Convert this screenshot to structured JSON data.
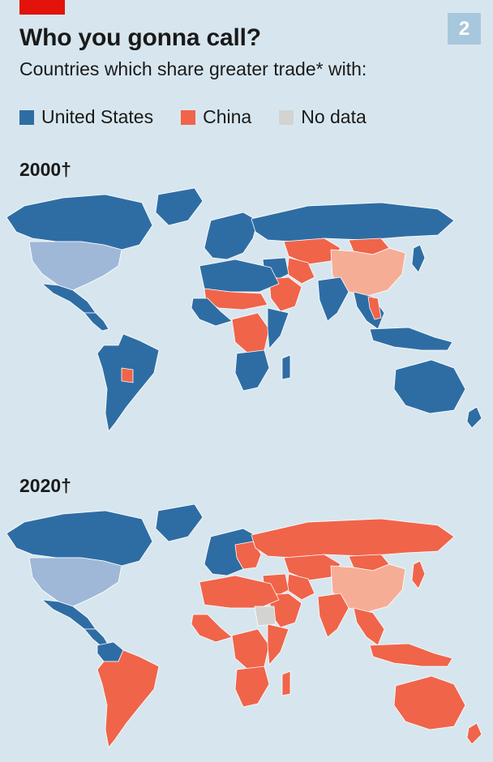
{
  "header": {
    "title": "Who you gonna call?",
    "subtitle": "Countries which share greater trade* with:",
    "badge": "2"
  },
  "legend": [
    {
      "label": "United States",
      "color": "#2e6da4"
    },
    {
      "label": "China",
      "color": "#f0644a"
    },
    {
      "label": "No data",
      "color": "#d3d3d1"
    }
  ],
  "colors": {
    "background": "#d7e6ee",
    "united_states": "#2e6da4",
    "china": "#f0644a",
    "no_data": "#d3d3d1",
    "usa_self": "#9fb8d8",
    "china_self": "#f6ad96",
    "border": "#ffffff",
    "accent_red": "#e3120b"
  },
  "maps": [
    {
      "year_label": "2000†",
      "regions": {
        "north_america": "united_states",
        "usa": "usa_self",
        "mexico": "united_states",
        "central_america": "united_states",
        "south_america": "united_states",
        "paraguay": "china",
        "greenland": "united_states",
        "europe": "united_states",
        "russia": "united_states",
        "central_asia": "china",
        "iran": "china",
        "middle_east": "united_states",
        "arabia": "china",
        "china": "china_self",
        "mongolia": "china",
        "india": "united_states",
        "southeast_asia": "united_states",
        "vietnam": "china",
        "japan": "united_states",
        "north_africa": "united_states",
        "sahel": "china",
        "west_africa": "united_states",
        "central_africa": "china",
        "east_africa": "united_states",
        "southern_africa": "united_states",
        "madagascar": "united_states",
        "indonesia": "united_states",
        "australia": "united_states",
        "new_zealand": "united_states"
      }
    },
    {
      "year_label": "2020†",
      "regions": {
        "north_america": "united_states",
        "usa": "usa_self",
        "mexico": "united_states",
        "central_america": "united_states",
        "south_america": "china",
        "colombia": "united_states",
        "greenland": "united_states",
        "europe": "united_states",
        "eastern_europe": "china",
        "russia": "china",
        "central_asia": "china",
        "iran": "china",
        "middle_east": "china",
        "arabia": "china",
        "china": "china_self",
        "mongolia": "china",
        "india": "china",
        "southeast_asia": "china",
        "japan": "china",
        "north_africa": "china",
        "sudan": "no_data",
        "west_africa": "china",
        "central_africa": "china",
        "east_africa": "china",
        "southern_africa": "china",
        "madagascar": "china",
        "indonesia": "china",
        "australia": "china",
        "new_zealand": "china"
      }
    }
  ]
}
